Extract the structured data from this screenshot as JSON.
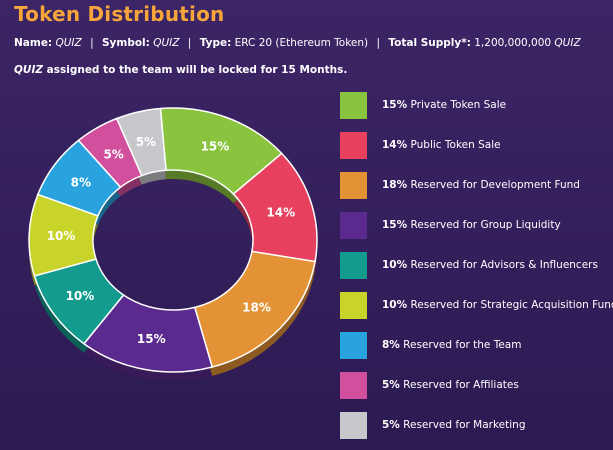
{
  "header": {
    "title": "Token Distribution",
    "name_label": "Name:",
    "name_value": "QUIZ",
    "symbol_label": "Symbol:",
    "symbol_value": "QUIZ",
    "type_label": "Type:",
    "type_value": "ERC 20 (Ethereum Token)",
    "supply_label": "Total Supply*:",
    "supply_value": "1,200,000,000",
    "supply_unit": "QUIZ",
    "separator": "|",
    "note_token": "QUIZ",
    "note_text": "assigned to the team will be locked for 15 Months."
  },
  "chart_data": {
    "type": "pie",
    "donut": true,
    "slices": [
      {
        "label": "Private Token Sale",
        "value": 15,
        "display": "15%",
        "color": "#8ac43f"
      },
      {
        "label": "Public Token Sale",
        "value": 14,
        "display": "14%",
        "color": "#e8415f"
      },
      {
        "label": "Reserved for Development Fund",
        "value": 18,
        "display": "18%",
        "color": "#e39235"
      },
      {
        "label": "Reserved for Group Liquidity",
        "value": 15,
        "display": "15%",
        "color": "#5a2a8e"
      },
      {
        "label": "Reserved for Advisors & Influencers",
        "value": 10,
        "display": "10%",
        "color": "#139b8d"
      },
      {
        "label": "Reserved for Strategic Acquisition Fund",
        "value": 10,
        "display": "10%",
        "color": "#c9d42a"
      },
      {
        "label": "Reserved for the Team",
        "value": 8,
        "display": "8%",
        "color": "#29a3de"
      },
      {
        "label": "Reserved for Affiliates",
        "value": 5,
        "display": "5%",
        "color": "#d24f9e"
      },
      {
        "label": "Reserved for Marketing",
        "value": 5,
        "display": "5%",
        "color": "#c6c8cc"
      }
    ],
    "legend_position": "right"
  }
}
